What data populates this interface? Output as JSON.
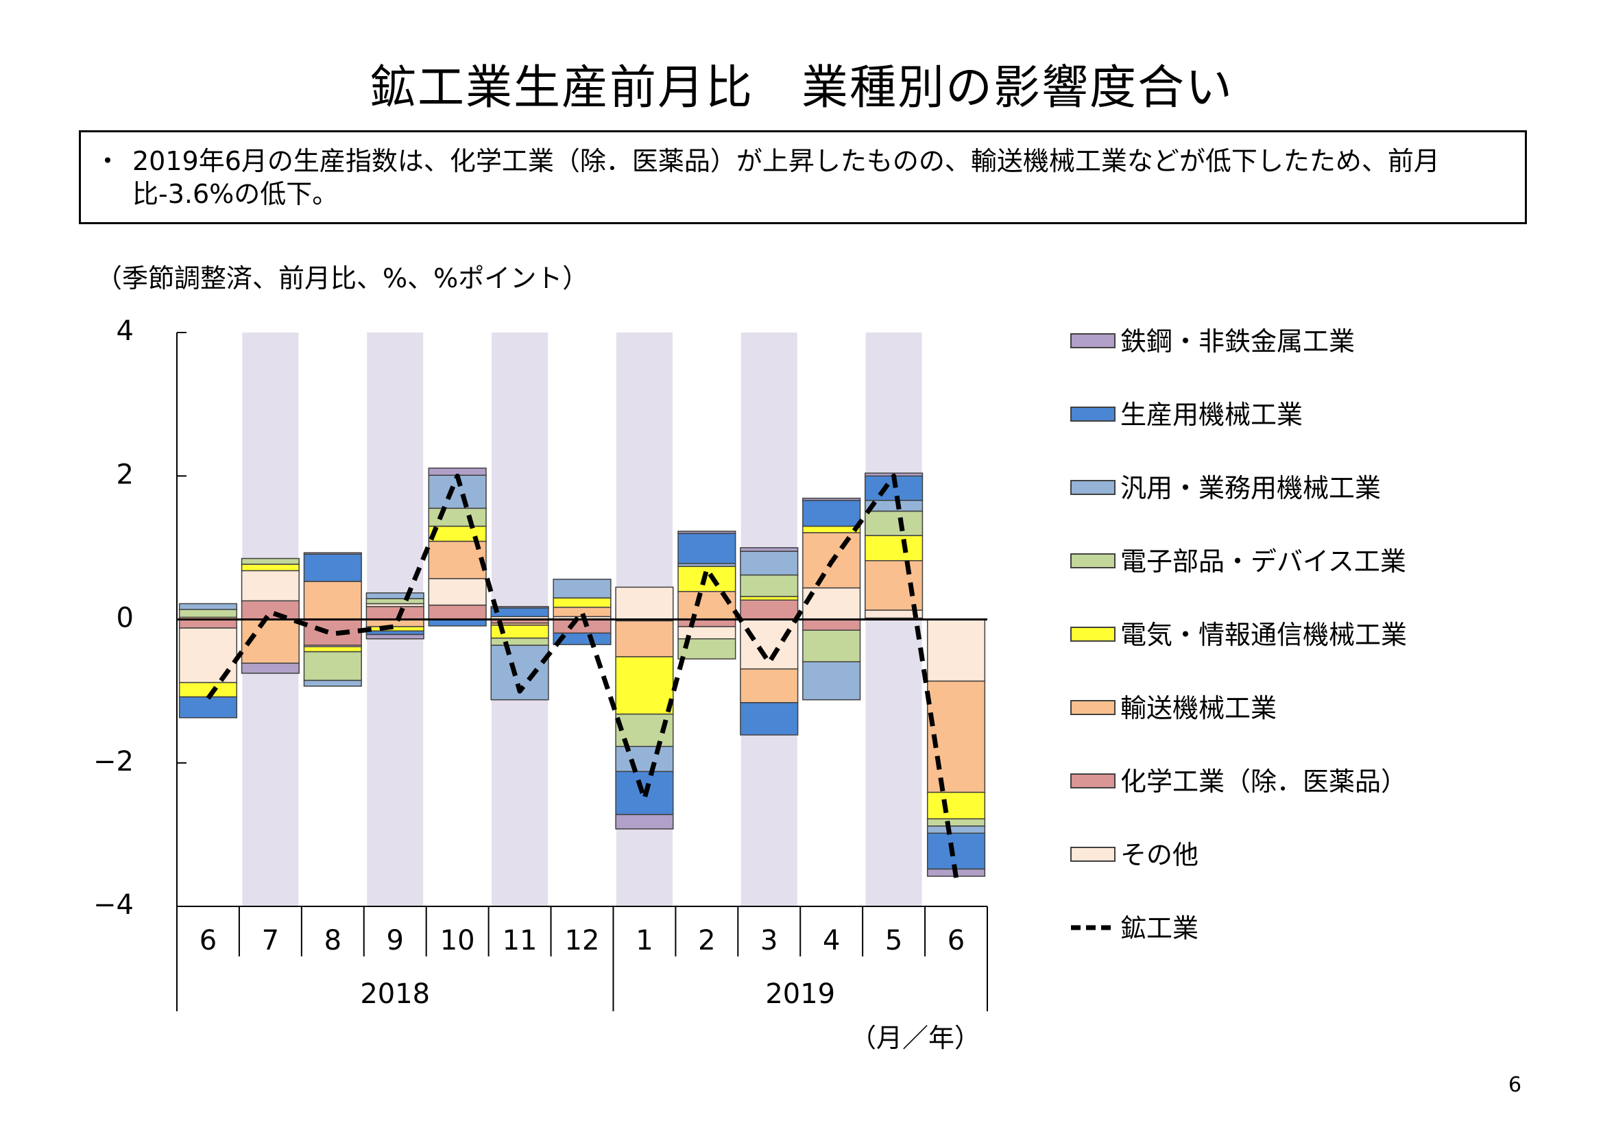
{
  "title": "鉱工業生産前月比　業種別の影響度合い",
  "summary": {
    "bullet": "・",
    "text": "2019年6月の生産指数は、化学工業（除．医薬品）が上昇したものの、輸送機械工業などが低下したため、前月比-3.6%の低下。"
  },
  "unit_note": "（季節調整済、前月比、%、%ポイント）",
  "month_year_note": "（月／年）",
  "page_number": "6",
  "colors": {
    "shade": "#e4dfec",
    "鉄鋼・非鉄金属工業": "#b1a0c7",
    "生産用機械工業": "#4a86d4",
    "汎用・業務用機械工業": "#95b3d7",
    "電子部品・デバイス工業": "#c4d79b",
    "電気・情報通信機械工業": "#ffff33",
    "輸送機械工業": "#fabf8f",
    "化学工業（除．医薬品）": "#da9694",
    "その他": "#fde9d9",
    "鉱工業": "#000000"
  },
  "chart_data": {
    "type": "bar",
    "stacked": true,
    "ylim": [
      -4,
      4
    ],
    "yticks": [
      "4",
      "2",
      "0",
      "−2",
      "−4"
    ],
    "ytick_values": [
      4,
      2,
      0,
      -2,
      -4
    ],
    "categories": [
      "6",
      "7",
      "8",
      "9",
      "10",
      "11",
      "12",
      "1",
      "2",
      "3",
      "4",
      "5",
      "6"
    ],
    "year_groups": [
      {
        "label": "2018",
        "from": 0,
        "to": 6
      },
      {
        "label": "2019",
        "from": 7,
        "to": 12
      }
    ],
    "shaded_columns": [
      1,
      3,
      5,
      7,
      9,
      11
    ],
    "series": [
      {
        "name": "化学工業（除．医薬品）",
        "values": [
          -0.12,
          0.26,
          -0.36,
          0.18,
          0.2,
          -0.05,
          -0.19,
          -0.02,
          -0.1,
          0.27,
          -0.15,
          0.02,
          0.0
        ]
      },
      {
        "name": "その他",
        "values": [
          -0.76,
          0.42,
          -0.02,
          0.04,
          0.37,
          0.04,
          0.04,
          0.45,
          -0.17,
          -0.69,
          0.44,
          0.11,
          -0.86
        ]
      },
      {
        "name": "輸送機械工業",
        "values": [
          0.03,
          -0.61,
          0.53,
          -0.1,
          0.52,
          -0.03,
          0.13,
          -0.5,
          0.39,
          -0.47,
          0.77,
          0.69,
          -1.55
        ]
      },
      {
        "name": "電気・情報通信機械工業",
        "values": [
          -0.2,
          0.09,
          -0.07,
          -0.06,
          0.21,
          -0.18,
          0.13,
          -0.8,
          0.35,
          0.05,
          0.09,
          0.35,
          -0.37
        ]
      },
      {
        "name": "電子部品・デバイス工業",
        "values": [
          0.11,
          0.08,
          -0.4,
          0.07,
          0.25,
          -0.1,
          0.0,
          -0.45,
          -0.28,
          0.3,
          -0.44,
          0.34,
          -0.1
        ]
      },
      {
        "name": "汎用・業務用機械工業",
        "values": [
          0.08,
          0.0,
          -0.08,
          0.08,
          0.46,
          -0.76,
          0.26,
          -0.35,
          0.04,
          0.33,
          -0.53,
          0.15,
          -0.1
        ]
      },
      {
        "name": "生産用機械工業",
        "values": [
          -0.29,
          0.0,
          0.38,
          -0.05,
          -0.09,
          0.12,
          -0.16,
          -0.6,
          0.42,
          -0.45,
          0.36,
          0.34,
          -0.5
        ]
      },
      {
        "name": "鉄鋼・非鉄金属工業",
        "values": [
          0.0,
          -0.14,
          0.02,
          -0.06,
          0.1,
          0.02,
          0.0,
          -0.2,
          0.03,
          0.05,
          0.03,
          0.04,
          -0.1
        ]
      }
    ],
    "line": {
      "name": "鉱工業",
      "values": [
        -1.1,
        0.1,
        -0.2,
        -0.1,
        2.0,
        -1.0,
        0.1,
        -2.5,
        0.7,
        -0.6,
        0.8,
        2.0,
        -3.6
      ]
    },
    "legend": [
      {
        "label": "鉄鋼・非鉄金属工業",
        "kind": "box"
      },
      {
        "label": "生産用機械工業",
        "kind": "box"
      },
      {
        "label": "汎用・業務用機械工業",
        "kind": "box"
      },
      {
        "label": "電子部品・デバイス工業",
        "kind": "box"
      },
      {
        "label": "電気・情報通信機械工業",
        "kind": "box"
      },
      {
        "label": "輸送機械工業",
        "kind": "box"
      },
      {
        "label": "化学工業（除．医薬品）",
        "kind": "box"
      },
      {
        "label": "その他",
        "kind": "box"
      },
      {
        "label": "鉱工業",
        "kind": "dashed-line"
      }
    ],
    "legend_position": "right",
    "grid": false
  }
}
